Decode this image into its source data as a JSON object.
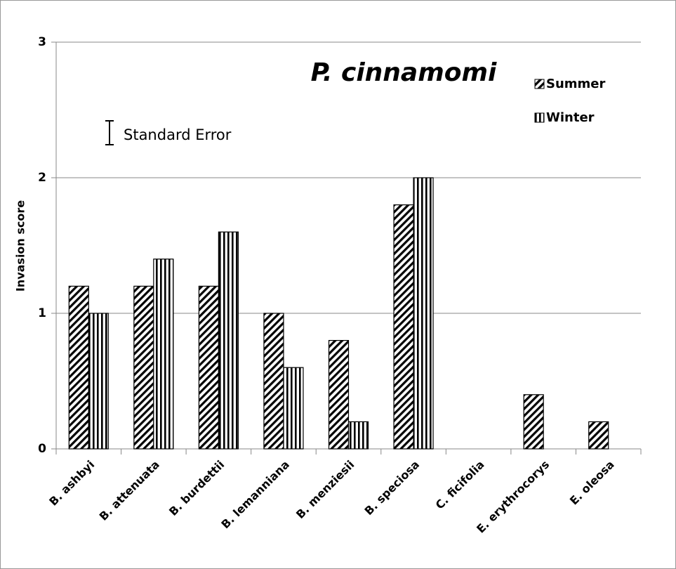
{
  "chart_data": {
    "type": "bar",
    "title": "P. cinnamomi",
    "ylabel": "Invasion score",
    "annotation": "Standard Error",
    "categories": [
      "B. ashbyi",
      "B. attenuata",
      "B. burdettii",
      "B. lemanniana",
      "B. menziesii",
      "B. speciosa",
      "C. ficifolia",
      "E. erythrocorys",
      "E. oleosa"
    ],
    "series": [
      {
        "name": "Summer",
        "color": "#000000",
        "hatch": "diagonal",
        "values": [
          1.2,
          1.2,
          1.2,
          1.0,
          0.8,
          1.8,
          0,
          0.4,
          0.2
        ]
      },
      {
        "name": "Winter",
        "color": "#000000",
        "hatch": "vertical",
        "values": [
          1.0,
          1.4,
          1.6,
          0.6,
          0.2,
          2.0,
          0,
          0,
          0
        ]
      }
    ],
    "ylim": [
      0,
      3
    ],
    "yticks": [
      0,
      1,
      2,
      3
    ],
    "grid": true
  }
}
